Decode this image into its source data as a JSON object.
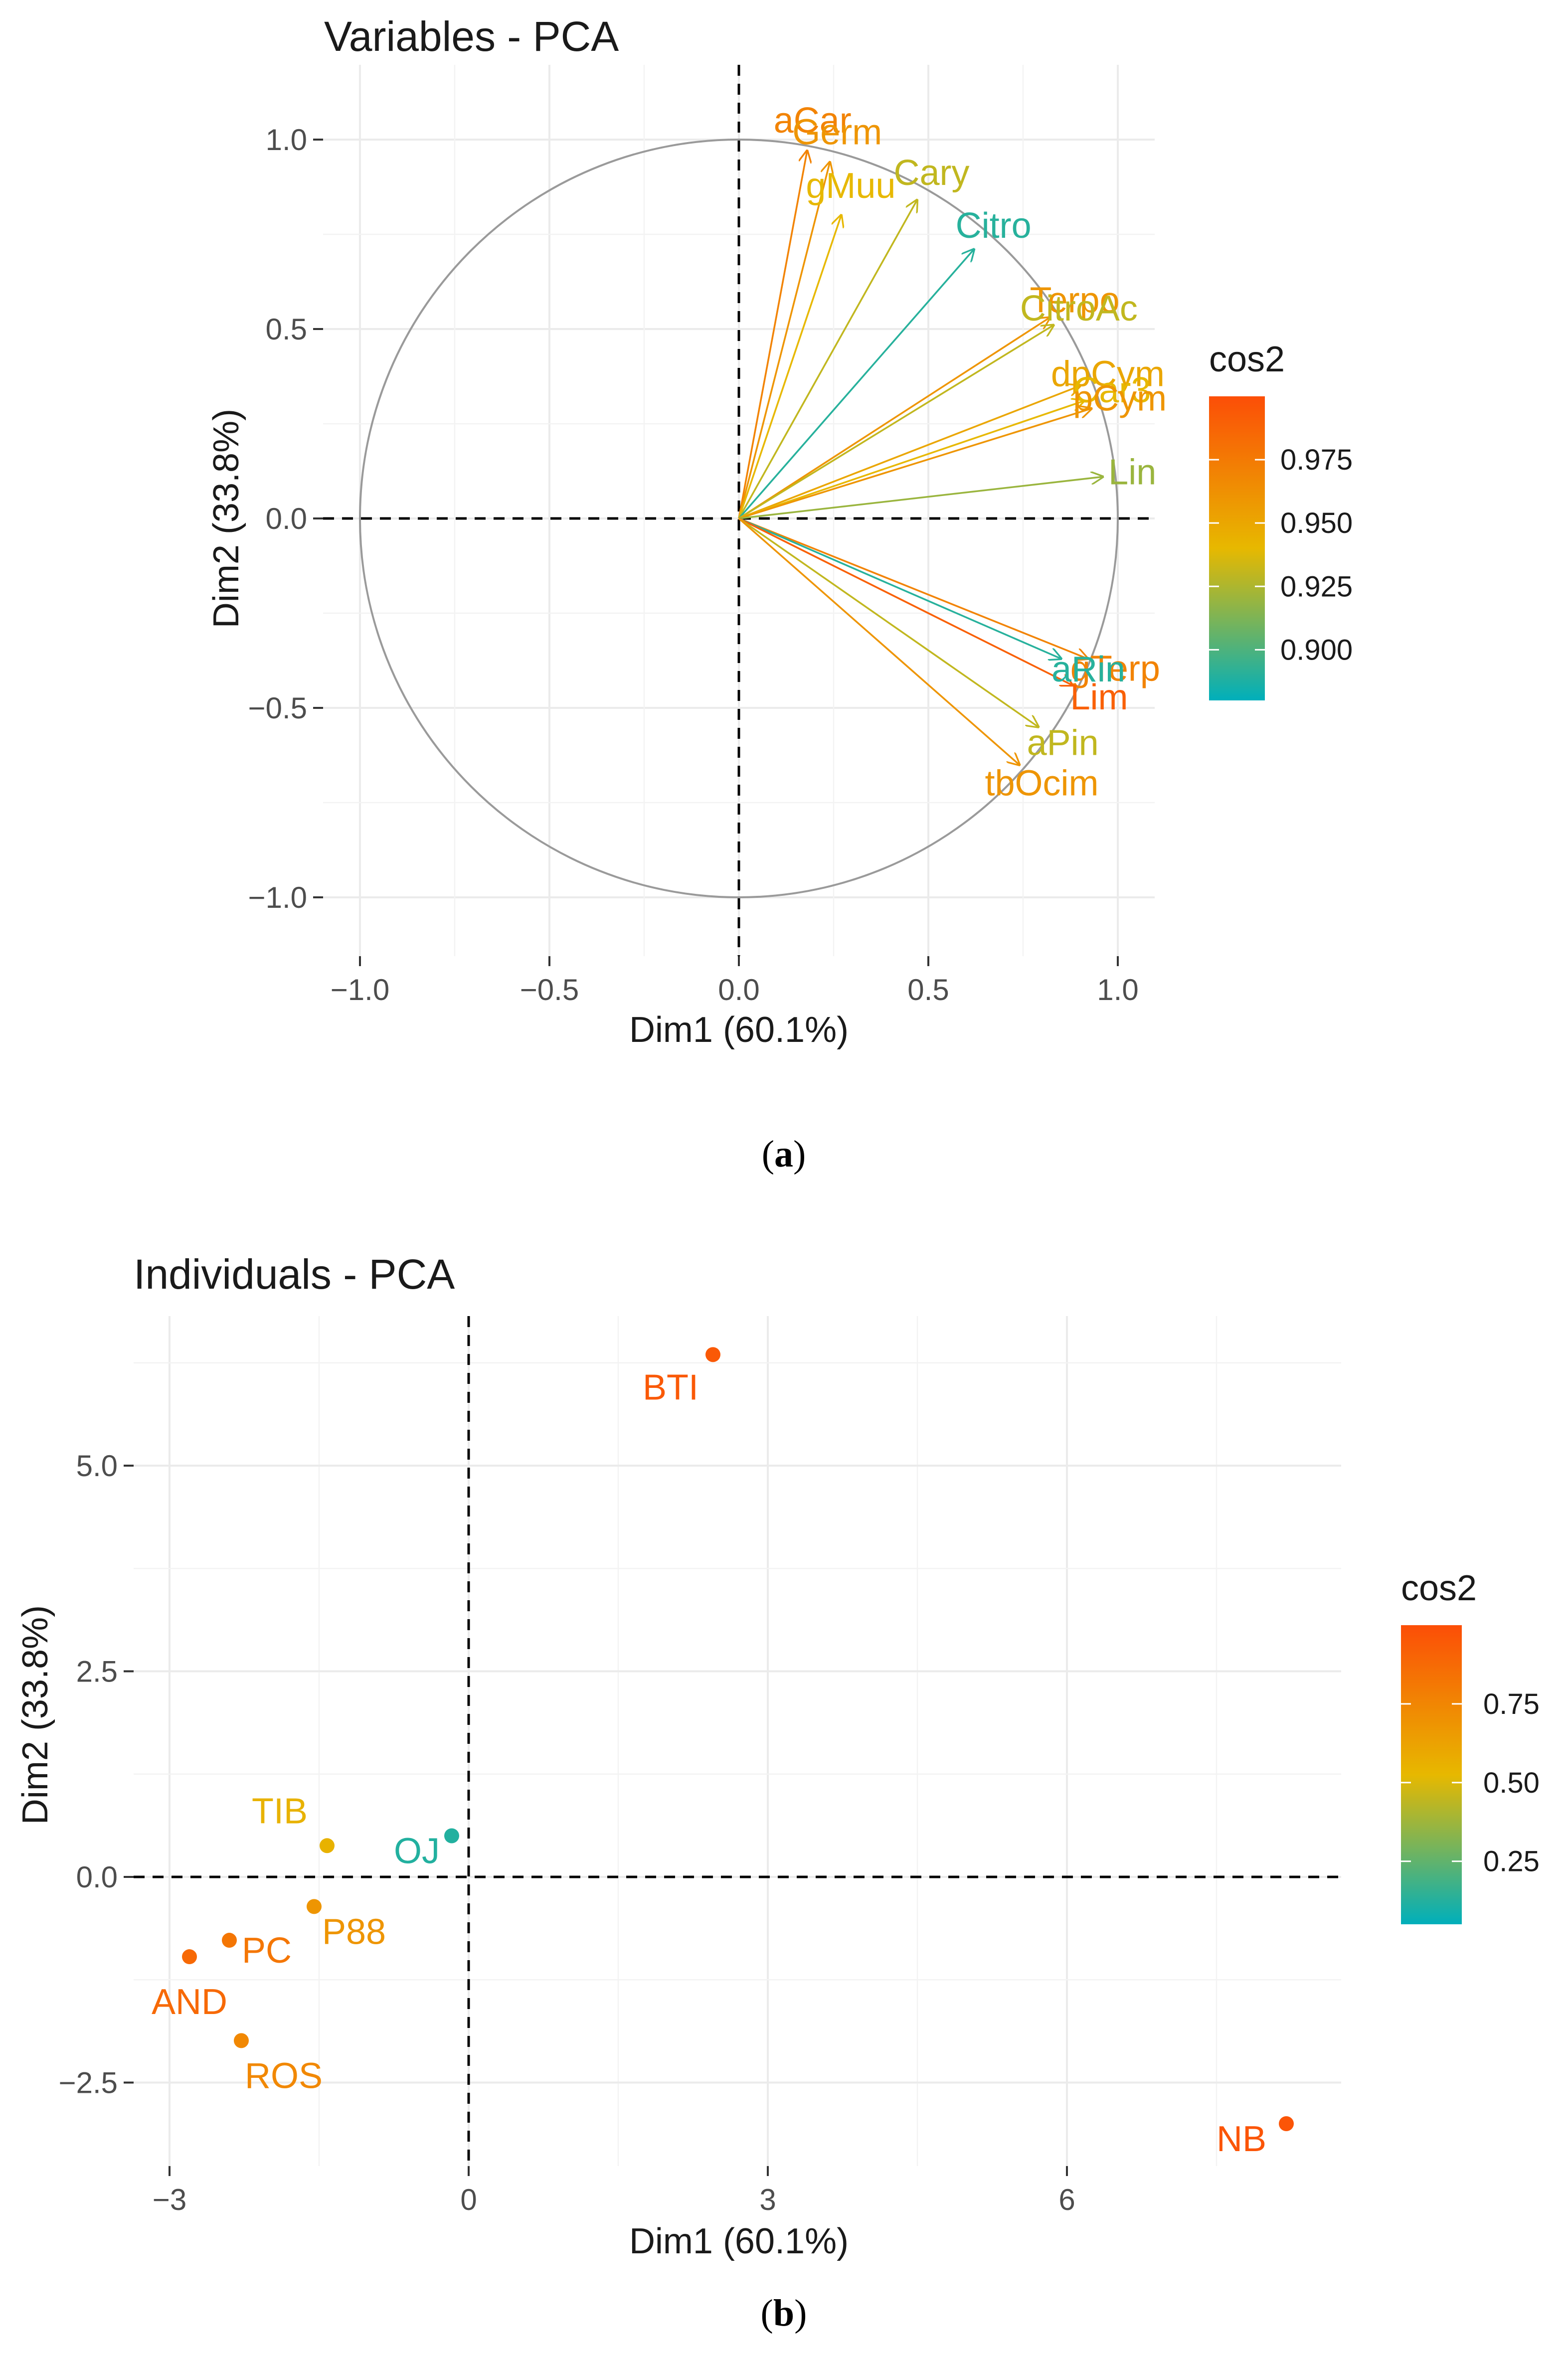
{
  "chart_data": [
    {
      "type": "scatter",
      "subtype": "pca-variables-correlation-circle",
      "title": "Variables - PCA",
      "xlabel": "Dim1 (60.1%)",
      "ylabel": "Dim2 (33.8%)",
      "xlim": [
        -1.1,
        1.1
      ],
      "ylim": [
        -1.1,
        1.1
      ],
      "xticks": [
        "−1.0",
        "−0.5",
        "0.0",
        "0.5",
        "1.0"
      ],
      "yticks": [
        "1.0",
        "0.5",
        "0.0",
        "−0.5",
        "−1.0"
      ],
      "grid": true,
      "legend": {
        "title": "cos2",
        "ticks": [
          "0.975",
          "0.950",
          "0.925",
          "0.900"
        ],
        "placement": "right"
      },
      "colors": {
        "low": "#00AFBB",
        "mid": "#E7B800",
        "high": "#FC4E07",
        "circle": "#999999",
        "grid": "#EBEBEB",
        "reference": "#000000"
      },
      "variables": [
        {
          "name": "aCar",
          "x": 0.18,
          "y": 0.97,
          "cos2": 0.97
        },
        {
          "name": "Germ",
          "x": 0.24,
          "y": 0.94,
          "cos2": 0.96
        },
        {
          "name": "gMuu",
          "x": 0.27,
          "y": 0.8,
          "cos2": 0.94
        },
        {
          "name": "Cary",
          "x": 0.47,
          "y": 0.84,
          "cos2": 0.93
        },
        {
          "name": "Citro",
          "x": 0.62,
          "y": 0.71,
          "cos2": 0.89
        },
        {
          "name": "Terpo",
          "x": 0.82,
          "y": 0.53,
          "cos2": 0.96
        },
        {
          "name": "CitroAc",
          "x": 0.83,
          "y": 0.51,
          "cos2": 0.93
        },
        {
          "name": "dpCym",
          "x": 0.9,
          "y": 0.35,
          "cos2": 0.95
        },
        {
          "name": "Car3",
          "x": 0.91,
          "y": 0.31,
          "cos2": 0.94
        },
        {
          "name": "pCym",
          "x": 0.93,
          "y": 0.29,
          "cos2": 0.96
        },
        {
          "name": "Lin",
          "x": 0.96,
          "y": 0.11,
          "cos2": 0.92
        },
        {
          "name": "gTerp",
          "x": 0.92,
          "y": -0.37,
          "cos2": 0.97
        },
        {
          "name": "aRin",
          "x": 0.85,
          "y": -0.37,
          "cos2": 0.89
        },
        {
          "name": "Lim",
          "x": 0.88,
          "y": -0.44,
          "cos2": 0.99
        },
        {
          "name": "aPin",
          "x": 0.79,
          "y": -0.55,
          "cos2": 0.93
        },
        {
          "name": "tbOcim",
          "x": 0.74,
          "y": -0.65,
          "cos2": 0.96
        }
      ],
      "caption": "(a)"
    },
    {
      "type": "scatter",
      "subtype": "pca-individuals",
      "title": "Individuals - PCA",
      "xlabel": "Dim1 (60.1%)",
      "ylabel": "Dim2 (33.8%)",
      "xlim": [
        -3.3,
        8.8
      ],
      "ylim": [
        -3.6,
        6.9
      ],
      "xticks": [
        "−3",
        "0",
        "3",
        "6"
      ],
      "yticks": [
        "5.0",
        "2.5",
        "0.0",
        "−2.5"
      ],
      "grid": true,
      "legend": {
        "title": "cos2",
        "ticks": [
          "0.75",
          "0.50",
          "0.25"
        ],
        "placement": "right"
      },
      "colors": {
        "low": "#00AFBB",
        "mid": "#E7B800",
        "high": "#FC4E07",
        "grid": "#EBEBEB",
        "reference": "#000000"
      },
      "individuals": [
        {
          "name": "BTI",
          "x": 2.45,
          "y": 6.35,
          "cos2": 0.95
        },
        {
          "name": "TIB",
          "x": -1.42,
          "y": 0.38,
          "cos2": 0.55
        },
        {
          "name": "OJ",
          "x": -0.17,
          "y": 0.5,
          "cos2": 0.12
        },
        {
          "name": "P88",
          "x": -1.55,
          "y": -0.36,
          "cos2": 0.68
        },
        {
          "name": "PC",
          "x": -2.4,
          "y": -0.77,
          "cos2": 0.82
        },
        {
          "name": "AND",
          "x": -2.8,
          "y": -0.97,
          "cos2": 0.88
        },
        {
          "name": "ROS",
          "x": -2.28,
          "y": -1.99,
          "cos2": 0.74
        },
        {
          "name": "NB",
          "x": 8.2,
          "y": -3.0,
          "cos2": 0.97
        }
      ],
      "caption": "(b)"
    }
  ]
}
